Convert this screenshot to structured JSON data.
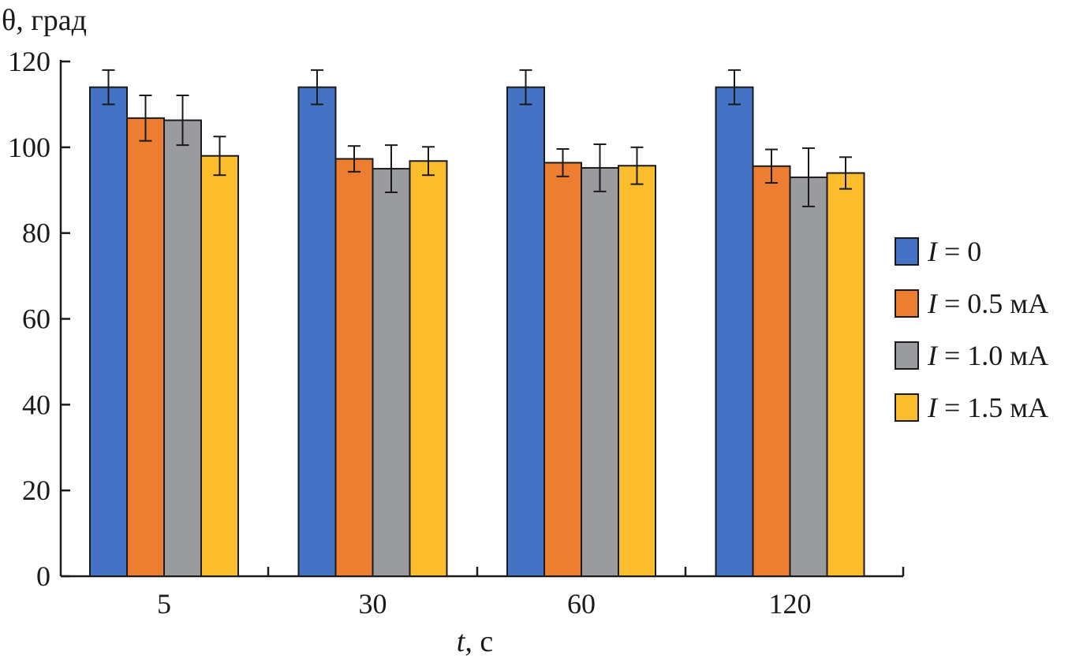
{
  "chart_data": {
    "type": "bar",
    "ylabel": "θ, град",
    "xlabel_var": "t",
    "xlabel_unit": ", с",
    "categories": [
      "5",
      "30",
      "60",
      "120"
    ],
    "ylim": [
      0,
      120
    ],
    "yticks": [
      "0",
      "20",
      "40",
      "60",
      "80",
      "100",
      "120"
    ],
    "legend_position": "right",
    "series": [
      {
        "var": "I",
        "name": " = 0",
        "color": "#4472c4",
        "values": [
          114,
          114,
          114,
          114
        ],
        "errors": [
          4,
          4,
          4,
          4
        ]
      },
      {
        "var": "I",
        "name": " = 0.5 мА",
        "color": "#ed7d31",
        "values": [
          106.8,
          97.3,
          96.4,
          95.6
        ],
        "errors": [
          5.3,
          3,
          3.2,
          3.9
        ]
      },
      {
        "var": "I",
        "name": " = 1.0 мА",
        "color": "#999b9e",
        "values": [
          106.3,
          95,
          95.2,
          93
        ],
        "errors": [
          5.8,
          5.5,
          5.5,
          6.8
        ]
      },
      {
        "var": "I",
        "name": " = 1.5 мА",
        "color": "#fbbd2b",
        "values": [
          98,
          96.8,
          95.7,
          94
        ],
        "errors": [
          4.5,
          3.3,
          4.3,
          3.7
        ]
      }
    ]
  }
}
